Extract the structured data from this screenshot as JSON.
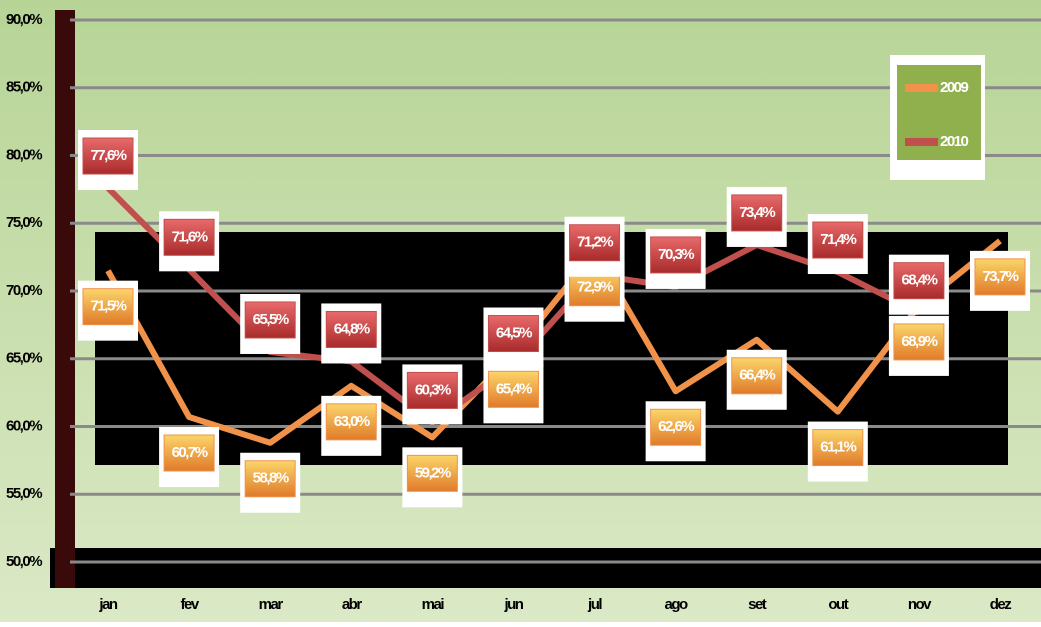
{
  "chart_data": {
    "type": "line",
    "categories": [
      "jan",
      "fev",
      "mar",
      "abr",
      "mai",
      "jun",
      "jul",
      "ago",
      "set",
      "out",
      "nov",
      "dez"
    ],
    "series": [
      {
        "name": "2009",
        "color": "#f0924a",
        "values": [
          71.5,
          60.7,
          58.8,
          63.0,
          59.2,
          65.4,
          72.9,
          62.6,
          66.4,
          61.1,
          68.9,
          73.7
        ],
        "value_labels": [
          "71,5%",
          "60,7%",
          "58,8%",
          "63,0%",
          "59,2%",
          "65,4%",
          "72,9%",
          "62,6%",
          "66,4%",
          "61,1%",
          "68,9%",
          "73,7%"
        ]
      },
      {
        "name": "2010",
        "color": "#c0504d",
        "values": [
          77.6,
          71.6,
          65.5,
          64.8,
          60.3,
          64.5,
          71.2,
          70.3,
          73.4,
          71.4,
          68.4,
          null
        ],
        "value_labels": [
          "77,6%",
          "71,6%",
          "65,5%",
          "64,8%",
          "60,3%",
          "64,5%",
          "71,2%",
          "70,3%",
          "73,4%",
          "71,4%",
          "68,4%",
          null
        ]
      }
    ],
    "ylim": [
      50,
      90
    ],
    "yticks": [
      {
        "value": 50,
        "label": "50,0%"
      },
      {
        "value": 55,
        "label": "55,0%"
      },
      {
        "value": 60,
        "label": "60,0%"
      },
      {
        "value": 65,
        "label": "65,0%"
      },
      {
        "value": 70,
        "label": "70,0%"
      },
      {
        "value": 75,
        "label": "75,0%"
      },
      {
        "value": 80,
        "label": "80,0%"
      },
      {
        "value": 85,
        "label": "85,0%"
      },
      {
        "value": 90,
        "label": "90,0%"
      }
    ],
    "grid": true,
    "legend": "top-right"
  }
}
